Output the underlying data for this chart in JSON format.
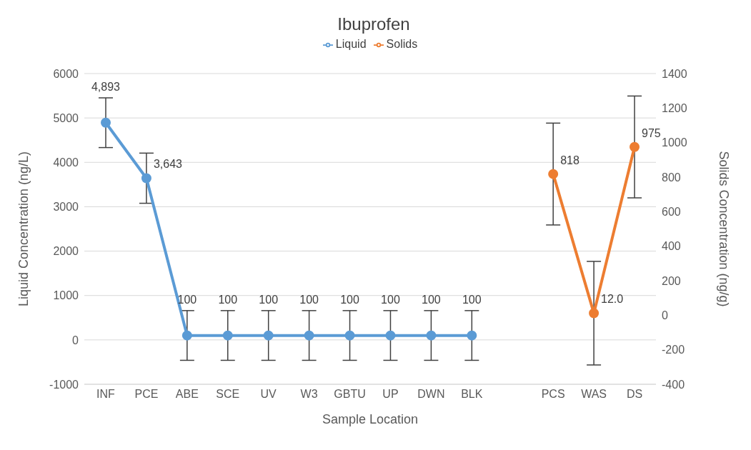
{
  "chart_data": {
    "type": "line",
    "title": "Ibuprofen",
    "xlabel": "Sample Location",
    "ylabel": "Liquid Concentration (ng/L)",
    "y2label": "Solids Concentration (ng/g)",
    "categories": [
      "INF",
      "PCE",
      "ABE",
      "SCE",
      "UV",
      "W3",
      "GBTU",
      "UP",
      "DWN",
      "BLK",
      null,
      "PCS",
      "WAS",
      "DS"
    ],
    "series": [
      {
        "name": "Liquid",
        "color": "#5b9bd5",
        "values": [
          4893,
          3643,
          100,
          100,
          100,
          100,
          100,
          100,
          100,
          100,
          null,
          null,
          null,
          null
        ],
        "errors": [
          560,
          565,
          560,
          560,
          560,
          560,
          560,
          560,
          560,
          560,
          null,
          null,
          null,
          null
        ],
        "value_labels": [
          "4,893",
          "3,643",
          "100",
          "100",
          "100",
          "100",
          "100",
          "100",
          "100",
          "100",
          null,
          null,
          null,
          null
        ]
      },
      {
        "name": "Solids",
        "color": "#ed7d31",
        "axis": "y2",
        "values": [
          null,
          null,
          null,
          null,
          null,
          null,
          null,
          null,
          null,
          null,
          null,
          818,
          12.0,
          975
        ],
        "errors": [
          null,
          null,
          null,
          null,
          null,
          null,
          null,
          null,
          null,
          null,
          null,
          295,
          300,
          295
        ],
        "value_labels": [
          null,
          null,
          null,
          null,
          null,
          null,
          null,
          null,
          null,
          null,
          null,
          "818",
          "12.0",
          "975"
        ]
      }
    ],
    "ylim": [
      -1000,
      6000
    ],
    "yticks": [
      -1000,
      0,
      1000,
      2000,
      3000,
      4000,
      5000,
      6000
    ],
    "y2lim": [
      -400,
      1400
    ],
    "y2ticks": [
      -400,
      -200,
      0,
      200,
      400,
      600,
      800,
      1000,
      1200,
      1400
    ],
    "grid": "y",
    "legend": "top",
    "marker": "circle",
    "line_style": "solid"
  }
}
